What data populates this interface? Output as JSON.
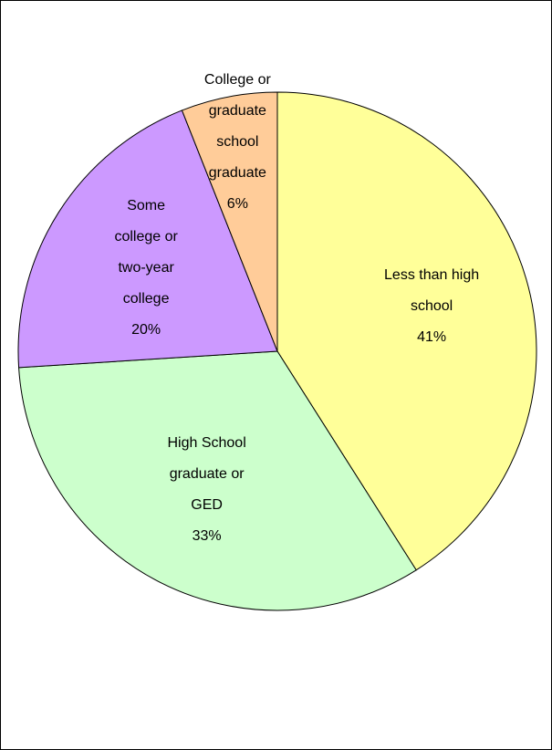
{
  "chart_data": {
    "type": "pie",
    "categories": [
      "Less than high school",
      "High School graduate or GED",
      "Some college or two-year college",
      "College or graduate school graduate"
    ],
    "values": [
      41,
      33,
      20,
      6
    ],
    "value_labels": [
      "41%",
      "33%",
      "20%",
      "6%"
    ],
    "colors": [
      "#ffff99",
      "#ccffcc",
      "#cc99ff",
      "#ffcc99"
    ]
  }
}
